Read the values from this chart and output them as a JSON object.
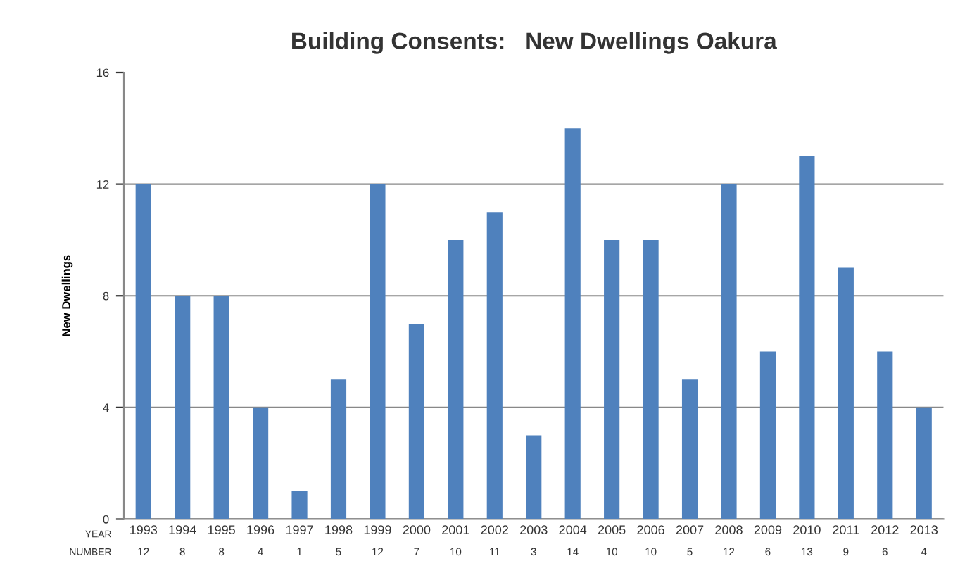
{
  "chart_data": {
    "type": "bar",
    "title": "Building Consents:   New Dwellings Oakura",
    "ylabel": "New Dwellings",
    "categories": [
      "1993",
      "1994",
      "1995",
      "1996",
      "1997",
      "1998",
      "1999",
      "2000",
      "2001",
      "2002",
      "2003",
      "2004",
      "2005",
      "2006",
      "2007",
      "2008",
      "2009",
      "2010",
      "2011",
      "2012",
      "2013"
    ],
    "series": [
      {
        "color": "#4f81bd",
        "values": [
          12,
          8,
          8,
          4,
          1,
          5,
          12,
          7,
          10,
          11,
          3,
          14,
          10,
          10,
          5,
          12,
          6,
          13,
          9,
          6,
          4
        ]
      }
    ],
    "ylim": [
      0,
      16
    ],
    "yticks": [
      0,
      4,
      8,
      12,
      16
    ],
    "grid": "y",
    "legend": false,
    "data_labels": true,
    "annotations": [
      "YEAR",
      "NUMBER"
    ]
  }
}
